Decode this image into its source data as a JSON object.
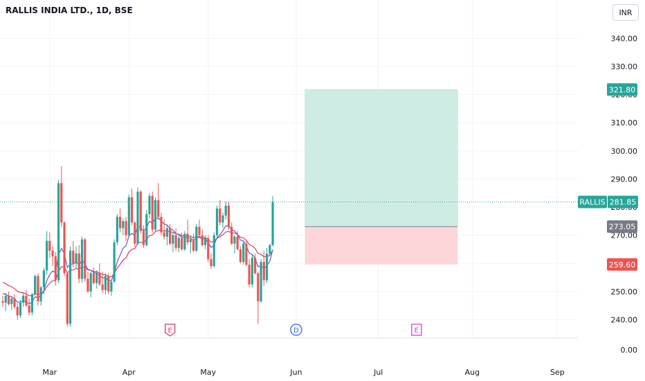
{
  "header": {
    "symbol_title": "RALLIS INDIA LTD., 1D, BSE",
    "currency": "INR"
  },
  "colors": {
    "up": "#26a69a",
    "down": "#ef5350",
    "ema_fast": "#5b5bd6",
    "ema_slow": "#e0386a",
    "target_zone": "#cfece4",
    "stop_zone": "#fcd6d8",
    "last_price_line": "#26a69a"
  },
  "chart_data": {
    "type": "candlestick",
    "title": "RALLIS INDIA LTD., 1D, BSE",
    "currency": "INR",
    "y_range": [
      236,
      346
    ],
    "y_ticks": [
      "340.00",
      "330.00",
      "320.00",
      "310.00",
      "300.00",
      "290.00",
      "280.00",
      "270.00",
      "250.00",
      "240.00"
    ],
    "bottom_axis_label": "0.00",
    "x_ticks": [
      {
        "label": "Mar",
        "day": 16
      },
      {
        "label": "Apr",
        "day": 43
      },
      {
        "label": "May",
        "day": 70
      },
      {
        "label": "Jun",
        "day": 100
      },
      {
        "label": "Jul",
        "day": 128
      },
      {
        "label": "Aug",
        "day": 160
      },
      {
        "label": "Sep",
        "day": 189
      }
    ],
    "candles": [
      [
        246.5,
        248.5,
        244.5,
        246.0
      ],
      [
        246.0,
        249.5,
        243.0,
        248.5
      ],
      [
        248.5,
        250.0,
        245.0,
        245.5
      ],
      [
        245.5,
        248.0,
        243.5,
        247.5
      ],
      [
        247.5,
        249.0,
        244.0,
        244.5
      ],
      [
        244.5,
        246.0,
        240.0,
        241.5
      ],
      [
        241.5,
        247.0,
        240.5,
        246.0
      ],
      [
        246.0,
        249.5,
        244.5,
        248.5
      ],
      [
        248.5,
        250.5,
        244.5,
        245.0
      ],
      [
        245.0,
        247.5,
        241.5,
        242.5
      ],
      [
        242.5,
        249.5,
        241.5,
        249.0
      ],
      [
        249.0,
        256.0,
        248.5,
        255.5
      ],
      [
        255.5,
        256.5,
        245.0,
        246.5
      ],
      [
        246.5,
        252.0,
        245.0,
        251.5
      ],
      [
        251.5,
        258.5,
        249.0,
        257.5
      ],
      [
        257.5,
        271.5,
        256.0,
        268.0
      ],
      [
        268.0,
        271.0,
        262.0,
        264.5
      ],
      [
        264.5,
        266.0,
        259.0,
        262.5
      ],
      [
        262.5,
        264.0,
        252.0,
        254.0
      ],
      [
        254.0,
        289.5,
        253.0,
        288.5
      ],
      [
        288.5,
        294.5,
        273.0,
        274.5
      ],
      [
        274.5,
        275.0,
        255.5,
        256.5
      ],
      [
        256.5,
        257.0,
        237.5,
        238.5
      ],
      [
        238.5,
        266.0,
        237.5,
        264.5
      ],
      [
        264.5,
        268.0,
        258.5,
        260.0
      ],
      [
        260.0,
        266.0,
        258.0,
        263.5
      ],
      [
        263.5,
        266.5,
        253.0,
        254.5
      ],
      [
        254.5,
        269.5,
        253.0,
        268.5
      ],
      [
        268.5,
        269.0,
        253.5,
        254.5
      ],
      [
        254.5,
        257.0,
        249.5,
        250.0
      ],
      [
        250.0,
        257.0,
        248.0,
        256.5
      ],
      [
        256.5,
        258.5,
        252.5,
        253.0
      ],
      [
        253.0,
        257.5,
        251.0,
        256.5
      ],
      [
        256.5,
        260.0,
        252.0,
        252.5
      ],
      [
        252.5,
        257.0,
        249.5,
        250.5
      ],
      [
        250.5,
        256.5,
        249.0,
        255.5
      ],
      [
        255.5,
        256.5,
        249.0,
        250.0
      ],
      [
        250.0,
        254.0,
        248.5,
        253.5
      ],
      [
        253.5,
        268.5,
        253.0,
        267.5
      ],
      [
        267.5,
        277.5,
        266.5,
        276.5
      ],
      [
        276.5,
        279.5,
        271.0,
        272.5
      ],
      [
        272.5,
        276.0,
        270.0,
        275.0
      ],
      [
        275.0,
        276.5,
        268.0,
        270.0
      ],
      [
        270.0,
        284.5,
        269.5,
        283.5
      ],
      [
        283.5,
        286.5,
        273.5,
        274.5
      ],
      [
        274.5,
        275.0,
        266.0,
        267.0
      ],
      [
        267.0,
        287.0,
        266.5,
        285.5
      ],
      [
        285.5,
        286.0,
        270.5,
        271.5
      ],
      [
        271.5,
        273.5,
        265.5,
        266.5
      ],
      [
        266.5,
        279.0,
        266.0,
        277.5
      ],
      [
        277.5,
        285.0,
        276.0,
        284.0
      ],
      [
        284.0,
        285.5,
        271.0,
        272.0
      ],
      [
        272.0,
        283.5,
        271.5,
        282.5
      ],
      [
        282.5,
        288.5,
        275.5,
        276.5
      ],
      [
        276.5,
        278.0,
        270.0,
        271.0
      ],
      [
        271.0,
        275.5,
        268.5,
        269.5
      ],
      [
        269.5,
        273.5,
        266.5,
        272.5
      ],
      [
        272.5,
        274.0,
        266.5,
        267.0
      ],
      [
        267.0,
        271.0,
        264.0,
        270.0
      ],
      [
        270.0,
        272.5,
        264.5,
        265.5
      ],
      [
        265.5,
        270.0,
        264.0,
        269.0
      ],
      [
        269.0,
        271.0,
        264.5,
        265.0
      ],
      [
        265.0,
        271.5,
        264.5,
        270.5
      ],
      [
        270.5,
        275.5,
        266.5,
        267.5
      ],
      [
        267.5,
        270.0,
        263.5,
        268.5
      ],
      [
        268.5,
        270.5,
        264.0,
        264.5
      ],
      [
        264.5,
        274.0,
        264.0,
        273.0
      ],
      [
        273.0,
        275.5,
        269.0,
        270.0
      ],
      [
        270.0,
        272.0,
        266.0,
        266.5
      ],
      [
        266.5,
        270.0,
        265.0,
        269.0
      ],
      [
        269.0,
        270.0,
        260.5,
        261.5
      ],
      [
        261.5,
        263.5,
        258.0,
        259.0
      ],
      [
        259.0,
        271.0,
        258.5,
        270.0
      ],
      [
        270.0,
        280.5,
        269.5,
        279.5
      ],
      [
        279.5,
        282.5,
        273.5,
        274.5
      ],
      [
        274.5,
        278.0,
        272.5,
        277.0
      ],
      [
        277.0,
        282.0,
        275.5,
        280.5
      ],
      [
        280.5,
        282.0,
        272.0,
        273.0
      ],
      [
        273.0,
        274.5,
        266.5,
        267.0
      ],
      [
        267.0,
        270.0,
        263.5,
        269.5
      ],
      [
        269.5,
        271.5,
        264.5,
        265.0
      ],
      [
        265.0,
        266.0,
        260.0,
        260.5
      ],
      [
        260.5,
        268.0,
        259.5,
        267.0
      ],
      [
        267.0,
        268.0,
        259.0,
        259.5
      ],
      [
        259.5,
        261.5,
        251.5,
        252.5
      ],
      [
        252.5,
        263.0,
        251.5,
        262.0
      ],
      [
        262.0,
        263.5,
        256.0,
        256.5
      ],
      [
        256.5,
        257.0,
        238.5,
        246.5
      ],
      [
        246.5,
        261.5,
        246.0,
        260.5
      ],
      [
        260.5,
        264.5,
        252.0,
        254.0
      ],
      [
        254.0,
        265.5,
        253.0,
        263.5
      ],
      [
        263.5,
        267.0,
        262.5,
        266.5
      ],
      [
        266.5,
        284.0,
        266.0,
        281.8
      ]
    ],
    "ema_fast_start": 250.0,
    "ema_fast_period": 9,
    "ema_slow_start": 254.0,
    "ema_slow_period": 20,
    "last_price": {
      "label": "RALLIS",
      "value": "281.85",
      "price": 281.85
    },
    "position": {
      "entry": {
        "value": "273.05",
        "price": 273.05
      },
      "target": {
        "value": "321.80",
        "price": 321.8
      },
      "stop": {
        "value": "259.60",
        "price": 259.6
      },
      "day_start": 103,
      "day_end": 155
    },
    "events": [
      {
        "type": "earnings",
        "label": "E",
        "day": 57,
        "color": "#e0386a",
        "style": "shield"
      },
      {
        "type": "dividend",
        "label": "D",
        "day": 100,
        "color": "#2962ff",
        "style": "circle"
      },
      {
        "type": "earnings",
        "label": "E",
        "day": 141,
        "color": "#d63fd6",
        "style": "square"
      }
    ]
  }
}
